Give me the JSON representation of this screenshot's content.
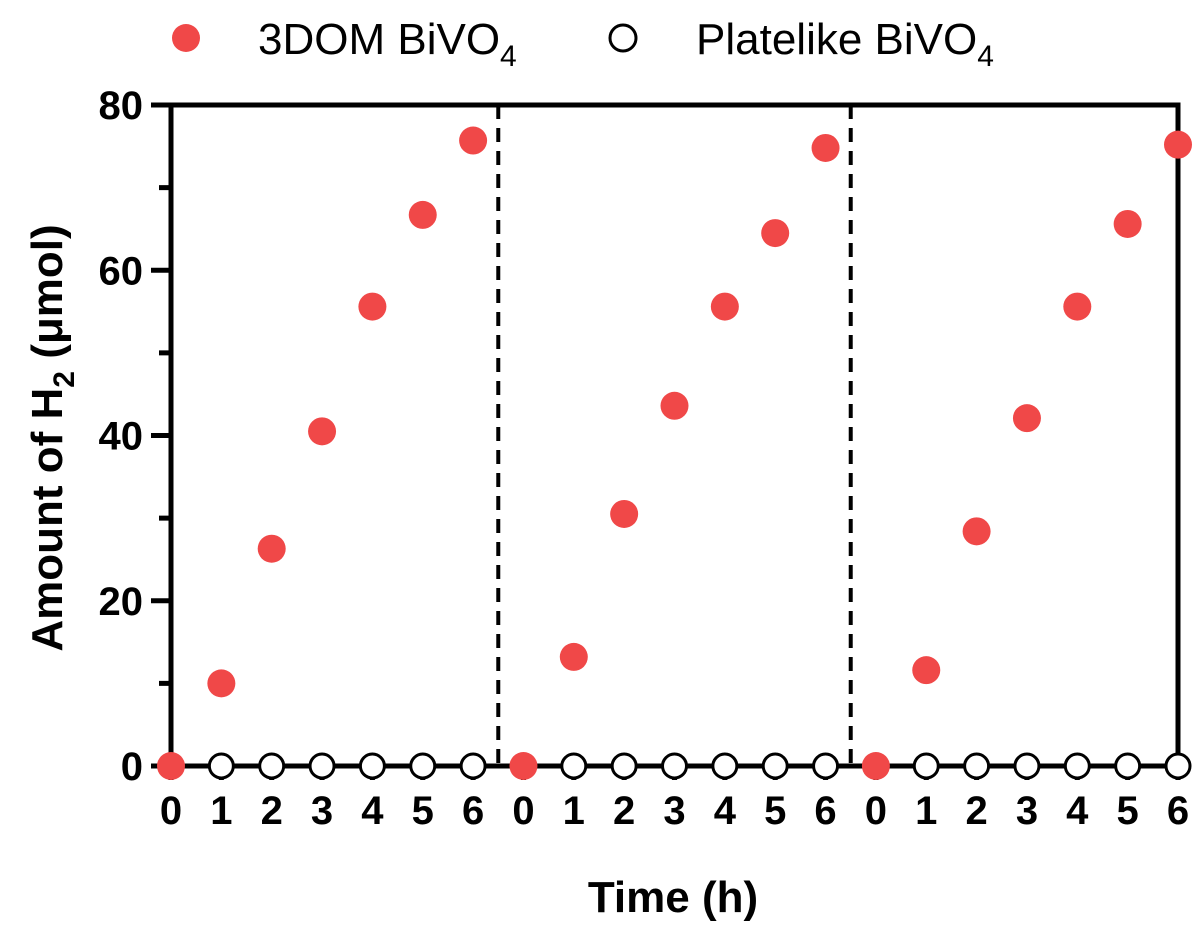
{
  "chart_data": {
    "type": "scatter",
    "x_ticks": [
      "0",
      "1",
      "2",
      "3",
      "4",
      "5",
      "6",
      "0",
      "1",
      "2",
      "3",
      "4",
      "5",
      "6",
      "0",
      "1",
      "2",
      "3",
      "4",
      "5",
      "6"
    ],
    "y_ticks": [
      "0",
      "20",
      "40",
      "60",
      "80"
    ],
    "ylim": [
      0,
      80
    ],
    "xlabel": "Time (h)",
    "ylabel": {
      "main": "Amount of H",
      "sub": "2",
      "unit": " (μmol)"
    },
    "legend_position": "top",
    "cycle_separators": [
      6.5,
      13.5
    ],
    "series": [
      {
        "name": {
          "main": "3DOM BiVO",
          "sub": "4"
        },
        "marker": "filled-circle",
        "color": "#f04848",
        "values": [
          0,
          10,
          26.3,
          40.5,
          55.6,
          66.7,
          75.7,
          0,
          13.2,
          30.5,
          43.6,
          55.6,
          64.5,
          74.8,
          0,
          11.6,
          28.4,
          42.1,
          55.6,
          65.6,
          75.2
        ]
      },
      {
        "name": {
          "main": "Platelike BiVO",
          "sub": "4"
        },
        "marker": "open-circle",
        "color": "#000000",
        "values": [
          0,
          0,
          0,
          0,
          0,
          0,
          0,
          0,
          0,
          0,
          0,
          0,
          0,
          0,
          0,
          0,
          0,
          0,
          0,
          0,
          0
        ]
      }
    ]
  }
}
